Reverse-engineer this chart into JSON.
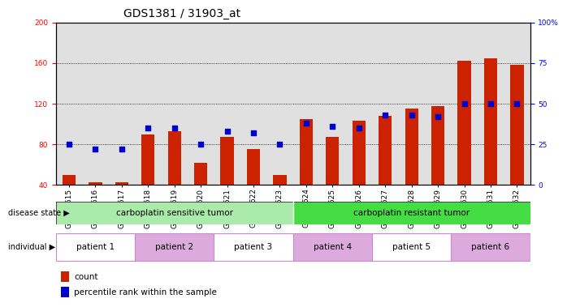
{
  "title": "GDS1381 / 31903_at",
  "samples": [
    "GSM34615",
    "GSM34616",
    "GSM34617",
    "GSM34618",
    "GSM34619",
    "GSM34620",
    "GSM34621",
    "GSM34622",
    "GSM34623",
    "GSM34624",
    "GSM34625",
    "GSM34626",
    "GSM34627",
    "GSM34628",
    "GSM34629",
    "GSM34630",
    "GSM34631",
    "GSM34632"
  ],
  "count_values": [
    50,
    43,
    43,
    90,
    93,
    62,
    87,
    75,
    50,
    105,
    87,
    103,
    108,
    115,
    118,
    162,
    165,
    158
  ],
  "percentile_values": [
    25,
    22,
    22,
    35,
    35,
    25,
    33,
    32,
    25,
    38,
    36,
    35,
    43,
    43,
    42,
    50,
    50,
    50
  ],
  "ylim_left": [
    40,
    200
  ],
  "ylim_right": [
    0,
    100
  ],
  "yticks_left": [
    40,
    80,
    120,
    160,
    200
  ],
  "yticks_right": [
    0,
    25,
    50,
    75,
    100
  ],
  "ytick_right_labels": [
    "0",
    "25",
    "50",
    "75",
    "100%"
  ],
  "bar_color": "#cc2200",
  "dot_color": "#0000cc",
  "bg_color": "#e0e0e0",
  "disease_state_labels": [
    "carboplatin sensitive tumor",
    "carboplatin resistant tumor"
  ],
  "disease_state_colors": [
    "#aaeaaa",
    "#44dd44"
  ],
  "disease_state_ranges": [
    [
      0,
      9
    ],
    [
      9,
      18
    ]
  ],
  "individual_labels": [
    "patient 1",
    "patient 2",
    "patient 3",
    "patient 4",
    "patient 5",
    "patient 6"
  ],
  "individual_colors": [
    "#ffffff",
    "#ddaadd",
    "#ffffff",
    "#ddaadd",
    "#ffffff",
    "#ddaadd"
  ],
  "individual_ranges": [
    [
      0,
      3
    ],
    [
      3,
      6
    ],
    [
      6,
      9
    ],
    [
      9,
      12
    ],
    [
      12,
      15
    ],
    [
      15,
      18
    ]
  ],
  "legend_count_label": "count",
  "legend_pct_label": "percentile rank within the sample",
  "title_fontsize": 10,
  "tick_fontsize": 6.5,
  "label_fontsize": 7.5,
  "annot_fontsize": 7
}
